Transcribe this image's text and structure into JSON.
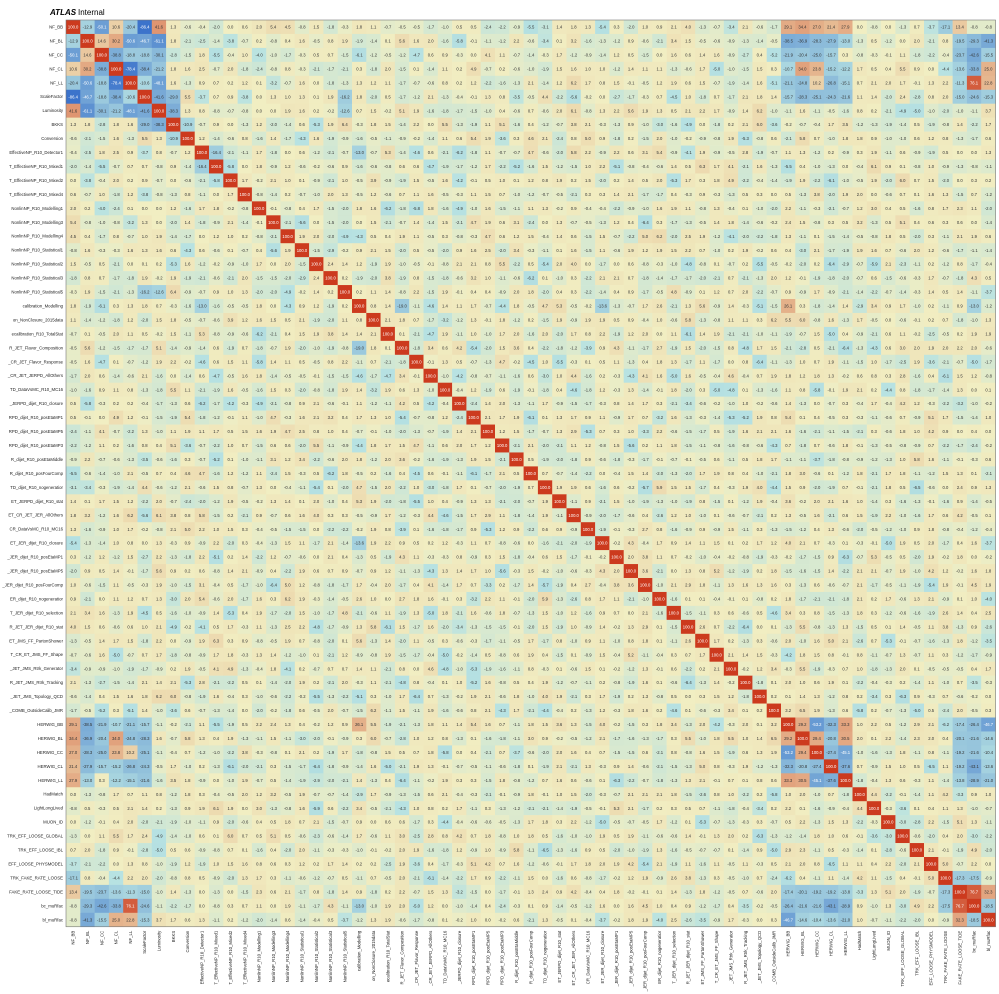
{
  "header": {
    "experiment": "ATLAS",
    "status": "Internal"
  },
  "chart_data": {
    "type": "heatmap",
    "color_scale": {
      "min": -100,
      "max": 100,
      "low": "#2b64c8",
      "mid": "#f1eec2",
      "high": "#cc3a1e"
    },
    "labels": [
      "NF_BB",
      "NF_BL",
      "NF_CC",
      "NF_CL",
      "NF_LL",
      "ScaleFactor",
      "Luminosity",
      "BKKS",
      "Conversion",
      "EffectiveNP_R10_Detector1",
      "T_EffectiveNP_R10_Mixed1",
      "T_EffectiveNP_R10_Mixed2",
      "T_EffectiveNP_R10_Mixed4",
      "NonlinNP_R10_Modelling1",
      "NonlinNP_R10_Modelling3",
      "NonlinNP_R10_Modelling4",
      "NonlinNP_R10_Statistical1",
      "NonlinNP_R10_Statistical2",
      "NonlinNP_R10_Statistical3",
      "NonlinNP_R10_Statistical5",
      "calibration_Modelling",
      "on_NonClosure_2015data",
      "ecalibration_R10_TotalStat",
      "R_JET_Flavor_Composition",
      "_CR_JET_Flavor_Response",
      "_CR_JET_JERPD_AllOthers",
      "TD_DataVsMC_R10_MC16",
      "_JERPD_dijet_R10_closure",
      "RPD_dijet_R10_posEtaMP1",
      "RPD_dijet_R10_posEtaMP5",
      "RPD_dijet_R10_posEtaMP3",
      "R_dijet_R10_posEtaMiddle",
      "R_dijet_R10_posFourComp",
      "TD_dijet_R10_nogeneratior",
      "ET_JERPD_dijet_R10_stat",
      "ET_CR_JET_JER_AllOthers",
      "CR_DataVsMC_R10_MC16",
      "ET_JER_dijet_R10_closure",
      "_JER_dijet_R10_posEtaMP1",
      "_JER_dijet_R10_posEtaMP5",
      "_JER_dijet_R10_posFourComp",
      "ER_dijet_R10_nogeneratior",
      "T_JER_dijet_R10_selection",
      "R_JET_JER_dijet_R10_stat",
      "ET_JMS_FF_PartonShower",
      "T_CR_ET_JMS_FF_Shape",
      "_JET_JMS_Rtrk_Generator",
      "R_JET_JMS_Rtrk_Tracking",
      "_JET_JMS_Topology_QCD",
      "_COMB_OutsideCalib_JMR",
      "HERWIG_BB",
      "HERWIG_BL",
      "HERWIG_CC",
      "HERWIG_CL",
      "HERWIG_LL",
      "HadMatch",
      "LightLongLived",
      "MUON_ID",
      "TRK_EFF_LOOSE_GLOBAL",
      "TRK_EFF_LOOSE_IBL",
      "EFF_LOOSE_PHYSMODEL",
      "TRK_FAKE_RATE_LOOSE",
      "FAKE_RATE_LOOSE_TIDE",
      "bc_muRfac",
      "bl_muRfac"
    ],
    "strong": [
      [
        0,
        1,
        -12.9
      ],
      [
        0,
        2,
        -50.1
      ],
      [
        0,
        3,
        10.6
      ],
      [
        0,
        4,
        -20.4
      ],
      [
        0,
        5,
        -86.4
      ],
      [
        0,
        6,
        41.6
      ],
      [
        0,
        50,
        29.1
      ],
      [
        0,
        51,
        34.4
      ],
      [
        0,
        52,
        27.0
      ],
      [
        0,
        53,
        21.4
      ],
      [
        0,
        54,
        27.9
      ],
      [
        0,
        61,
        -17.1
      ],
      [
        0,
        62,
        13.4
      ],
      [
        1,
        2,
        14.6
      ],
      [
        1,
        3,
        30.2
      ],
      [
        1,
        4,
        -50.6
      ],
      [
        1,
        5,
        -46.7
      ],
      [
        1,
        6,
        -61.1
      ],
      [
        1,
        50,
        -38.5
      ],
      [
        1,
        51,
        -36.9
      ],
      [
        1,
        52,
        -28.3
      ],
      [
        1,
        53,
        -27.9
      ],
      [
        1,
        54,
        -13.0
      ],
      [
        1,
        62,
        -19.5
      ],
      [
        1,
        63,
        -29.3
      ],
      [
        1,
        64,
        -41.3
      ],
      [
        2,
        3,
        -38.8
      ],
      [
        2,
        4,
        -18.8
      ],
      [
        2,
        5,
        -18.8
      ],
      [
        2,
        6,
        -30.1
      ],
      [
        2,
        50,
        -21.9
      ],
      [
        2,
        51,
        -20.4
      ],
      [
        2,
        52,
        -25.0
      ],
      [
        2,
        53,
        -15.7
      ],
      [
        2,
        62,
        -23.7
      ],
      [
        2,
        63,
        -42.6
      ],
      [
        2,
        64,
        -15.5
      ],
      [
        3,
        4,
        -78.4
      ],
      [
        3,
        5,
        -38.4
      ],
      [
        3,
        6,
        -21.2
      ],
      [
        3,
        50,
        -10.7
      ],
      [
        3,
        51,
        34.0
      ],
      [
        3,
        52,
        23.8
      ],
      [
        3,
        53,
        -15.2
      ],
      [
        3,
        54,
        -12.2
      ],
      [
        3,
        62,
        -13.6
      ],
      [
        3,
        63,
        -33.8
      ],
      [
        3,
        64,
        25.0
      ],
      [
        4,
        5,
        -10.6
      ],
      [
        4,
        6,
        -48.1
      ],
      [
        4,
        50,
        -21.1
      ],
      [
        4,
        51,
        -24.8
      ],
      [
        4,
        52,
        10.2
      ],
      [
        4,
        53,
        -26.8
      ],
      [
        4,
        54,
        -15.1
      ],
      [
        4,
        62,
        -11.3
      ],
      [
        4,
        63,
        76.1
      ],
      [
        4,
        64,
        22.8
      ],
      [
        5,
        6,
        -41.6
      ],
      [
        5,
        7,
        -29.0
      ],
      [
        5,
        19,
        -16.2
      ],
      [
        5,
        50,
        -15.7
      ],
      [
        5,
        51,
        -28.3
      ],
      [
        5,
        52,
        -25.1
      ],
      [
        5,
        53,
        -24.3
      ],
      [
        5,
        54,
        -21.6
      ],
      [
        5,
        62,
        -15.0
      ],
      [
        5,
        63,
        -24.6
      ],
      [
        5,
        64,
        -15.3
      ],
      [
        6,
        7,
        -38.3
      ],
      [
        6,
        19,
        -12.6
      ],
      [
        7,
        8,
        -10.9
      ],
      [
        9,
        10,
        -16.4
      ],
      [
        9,
        20,
        -13.0
      ],
      [
        20,
        23,
        -19.0
      ],
      [
        20,
        37,
        -13.6
      ],
      [
        20,
        50,
        26.1
      ],
      [
        20,
        63,
        -13.0
      ],
      [
        50,
        51,
        29.2
      ],
      [
        50,
        52,
        -53.2
      ],
      [
        50,
        53,
        -32.3
      ],
      [
        50,
        54,
        33.3
      ],
      [
        50,
        62,
        -17.4
      ],
      [
        50,
        63,
        -26.4
      ],
      [
        50,
        64,
        -46.7
      ],
      [
        51,
        52,
        29.4
      ],
      [
        51,
        53,
        -20.8
      ],
      [
        51,
        54,
        30.5
      ],
      [
        51,
        62,
        -20.1
      ],
      [
        51,
        63,
        -21.6
      ],
      [
        51,
        64,
        -14.6
      ],
      [
        52,
        53,
        -27.4
      ],
      [
        52,
        54,
        -45.1
      ],
      [
        52,
        62,
        -19.2
      ],
      [
        52,
        63,
        -21.6
      ],
      [
        52,
        64,
        -10.4
      ],
      [
        53,
        54,
        -37.6
      ],
      [
        53,
        62,
        -19.2
      ],
      [
        53,
        63,
        -43.1
      ],
      [
        53,
        64,
        -13.6
      ],
      [
        54,
        62,
        -13.8
      ],
      [
        54,
        63,
        -28.9
      ],
      [
        54,
        64,
        -21.0
      ],
      [
        61,
        62,
        -17.3
      ],
      [
        61,
        63,
        -17.5
      ],
      [
        62,
        63,
        76.7
      ],
      [
        62,
        64,
        32.3
      ],
      [
        63,
        64,
        -18.5
      ]
    ]
  }
}
